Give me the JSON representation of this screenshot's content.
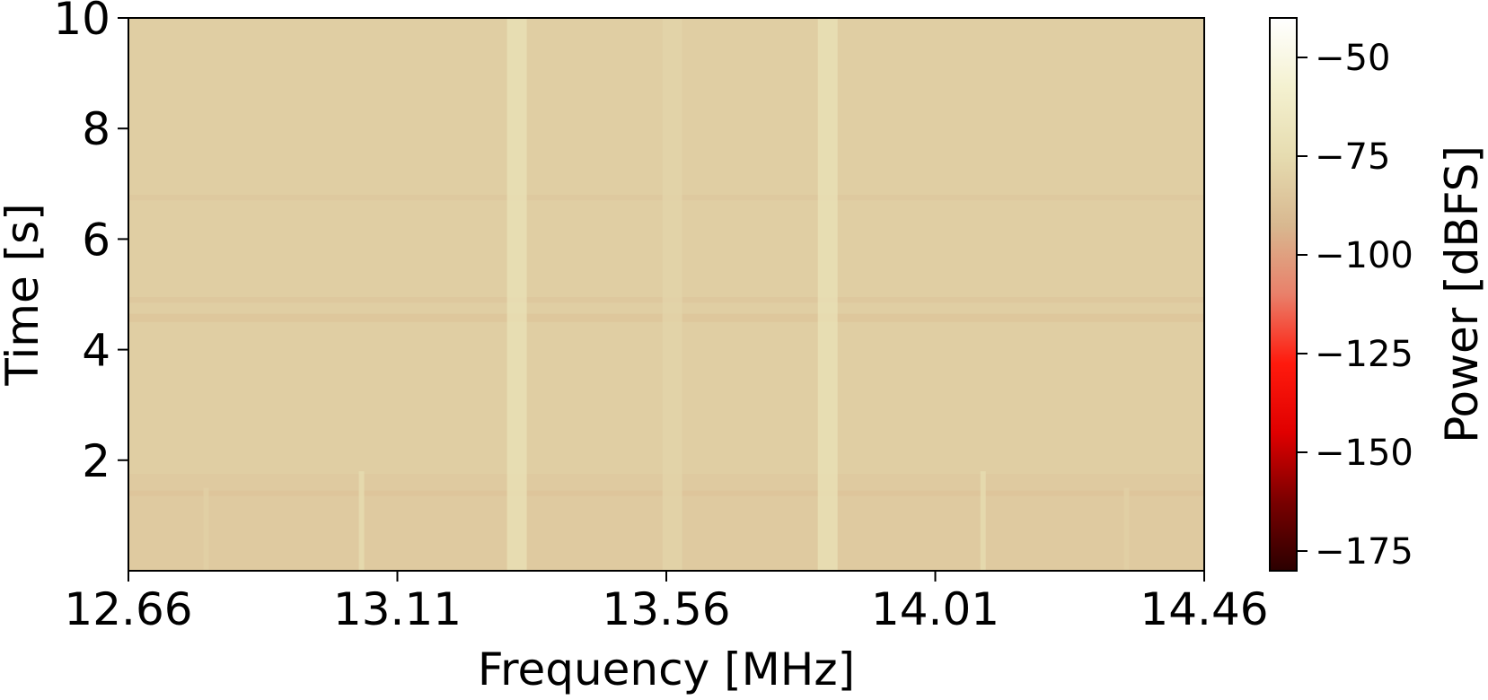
{
  "chart_data": {
    "type": "heatmap",
    "title": "",
    "xlabel": "Frequency [MHz]",
    "ylabel": "Time [s]",
    "colorbar_label": "Power [dBFS]",
    "colormap": [
      "#2b0000",
      "#7a0000",
      "#e00000",
      "#ff1a0d",
      "#e9806a",
      "#d8b890",
      "#e6dcb0",
      "#f4f1d0",
      "#ffffff"
    ],
    "x_ticks": [
      12.66,
      13.11,
      13.56,
      14.01,
      14.46
    ],
    "x_tick_labels": [
      "12.66",
      "13.11",
      "13.56",
      "14.01",
      "14.46"
    ],
    "xlim": [
      12.66,
      14.46
    ],
    "y_ticks": [
      2,
      4,
      6,
      8,
      10
    ],
    "y_tick_labels": [
      "2",
      "4",
      "6",
      "8",
      "10"
    ],
    "ylim": [
      0,
      10
    ],
    "colorbar_ticks": [
      -50,
      -75,
      -100,
      -125,
      -150,
      -175
    ],
    "colorbar_tick_labels": [
      "−50",
      "−75",
      "−100",
      "−125",
      "−150",
      "−175"
    ],
    "colorbar_range": [
      -180,
      -40
    ],
    "background_power": -82,
    "vertical_lines": [
      {
        "freq": 12.79,
        "power": -81,
        "t_start": 0,
        "t_end": 1.5
      },
      {
        "freq": 13.05,
        "power": -74,
        "t_start": 0,
        "t_end": 1.8
      },
      {
        "freq": 13.31,
        "power": -71,
        "t_start": 0,
        "t_end": 10
      },
      {
        "freq": 13.57,
        "power": -79,
        "t_start": 0,
        "t_end": 10
      },
      {
        "freq": 13.83,
        "power": -71,
        "t_start": 0,
        "t_end": 10
      },
      {
        "freq": 14.09,
        "power": -74,
        "t_start": 0,
        "t_end": 1.8
      },
      {
        "freq": 14.33,
        "power": -81,
        "t_start": 0,
        "t_end": 1.5
      }
    ],
    "horizontal_bands": [
      {
        "t_start": 0.0,
        "t_end": 1.75,
        "power": -85
      },
      {
        "t_start": 1.35,
        "t_end": 1.45,
        "power": -88
      },
      {
        "t_start": 4.5,
        "t_end": 4.65,
        "power": -88
      },
      {
        "t_start": 4.85,
        "t_end": 4.95,
        "power": -87
      },
      {
        "t_start": 6.7,
        "t_end": 6.8,
        "power": -86
      }
    ]
  }
}
